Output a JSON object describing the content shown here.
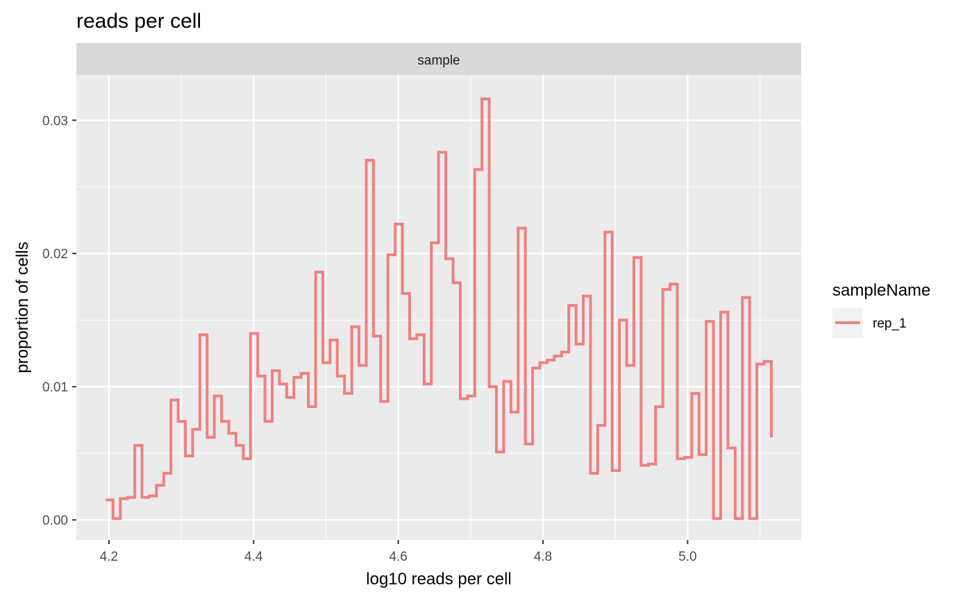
{
  "chart_data": {
    "type": "line",
    "step": true,
    "title": "reads per cell",
    "facet_label": "sample",
    "xlabel": "log10 reads per cell",
    "ylabel": "proportion of cells",
    "xlim": [
      4.155,
      5.157
    ],
    "ylim": [
      -0.0015,
      0.0334
    ],
    "x_ticks": [
      4.2,
      4.4,
      4.6,
      4.8,
      5.0
    ],
    "x_tick_labels": [
      "4.2",
      "4.4",
      "4.6",
      "4.8",
      "5.0"
    ],
    "y_ticks": [
      0.0,
      0.01,
      0.02,
      0.03
    ],
    "y_tick_labels": [
      "0.00",
      "0.01",
      "0.02",
      "0.03"
    ],
    "legend": {
      "title": "sampleName",
      "position": "right"
    },
    "series": [
      {
        "name": "rep_1",
        "color": "#F08080",
        "x_start": 4.1957,
        "bin_width": 0.01,
        "x_end": 5.1157,
        "values": [
          0.0015,
          0.0001,
          0.0016,
          0.0017,
          0.0056,
          0.0017,
          0.0018,
          0.0026,
          0.0035,
          0.009,
          0.0074,
          0.0048,
          0.0068,
          0.0139,
          0.0062,
          0.0093,
          0.0074,
          0.0065,
          0.0056,
          0.0046,
          0.014,
          0.0108,
          0.0074,
          0.0112,
          0.0102,
          0.0092,
          0.0107,
          0.011,
          0.0085,
          0.0186,
          0.0118,
          0.0135,
          0.0108,
          0.0095,
          0.0145,
          0.0116,
          0.027,
          0.0138,
          0.0089,
          0.0199,
          0.0222,
          0.017,
          0.0136,
          0.0139,
          0.0102,
          0.0208,
          0.0276,
          0.0196,
          0.0178,
          0.0091,
          0.0093,
          0.0263,
          0.0316,
          0.01,
          0.0051,
          0.0104,
          0.0081,
          0.0219,
          0.0057,
          0.0114,
          0.0118,
          0.012,
          0.0123,
          0.0126,
          0.0161,
          0.0132,
          0.0168,
          0.0035,
          0.0071,
          0.0216,
          0.0037,
          0.015,
          0.0116,
          0.0197,
          0.0041,
          0.0042,
          0.0085,
          0.0173,
          0.0177,
          0.0046,
          0.0047,
          0.0095,
          0.0049,
          0.0149,
          0.0001,
          0.0156,
          0.0054,
          0.0001,
          0.0167,
          0.0001,
          0.0117,
          0.0119
        ],
        "end_value": 0.0062
      }
    ]
  }
}
